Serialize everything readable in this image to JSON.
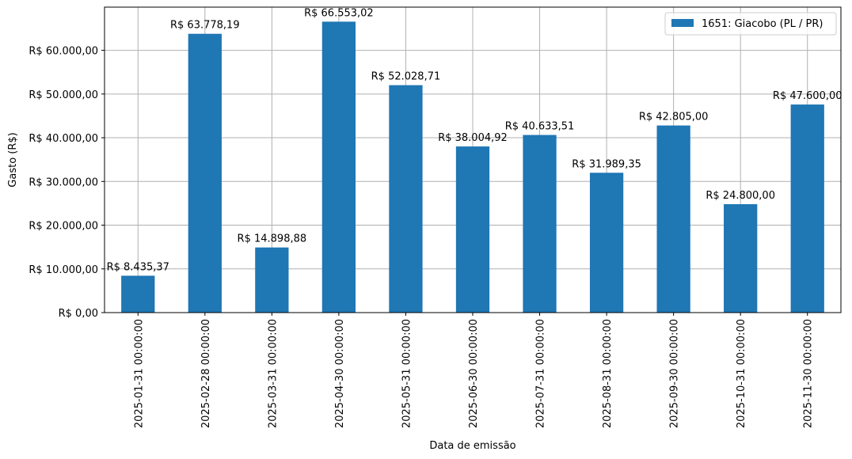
{
  "chart_data": {
    "type": "bar",
    "xlabel": "Data de emissão",
    "ylabel": "Gasto (R$)",
    "categories": [
      "2025-01-31 00:00:00",
      "2025-02-28 00:00:00",
      "2025-03-31 00:00:00",
      "2025-04-30 00:00:00",
      "2025-05-31 00:00:00",
      "2025-06-30 00:00:00",
      "2025-07-31 00:00:00",
      "2025-08-31 00:00:00",
      "2025-09-30 00:00:00",
      "2025-10-31 00:00:00",
      "2025-11-30 00:00:00"
    ],
    "series": [
      {
        "name": "1651: Giacobo (PL / PR)",
        "color": "#1f77b4",
        "values": [
          8435.37,
          63778.19,
          14898.88,
          66553.02,
          52028.71,
          38004.92,
          40633.51,
          31989.35,
          42805.0,
          24800.0,
          47600.0
        ],
        "data_labels": [
          "R$ 8.435,37",
          "R$ 63.778,19",
          "R$ 14.898,88",
          "R$ 66.553,02",
          "R$ 52.028,71",
          "R$ 38.004,92",
          "R$ 40.633,51",
          "R$ 31.989,35",
          "R$ 42.805,00",
          "R$ 24.800,00",
          "R$ 47.600,00"
        ]
      }
    ],
    "yticks": [
      0,
      10000,
      20000,
      30000,
      40000,
      50000,
      60000
    ],
    "ytick_labels": [
      "R$ 0,00",
      "R$ 10.000,00",
      "R$ 20.000,00",
      "R$ 30.000,00",
      "R$ 40.000,00",
      "R$ 50.000,00",
      "R$ 60.000,00"
    ],
    "ylim": [
      0,
      69880.67
    ],
    "grid": true,
    "legend_position": "top-right"
  }
}
